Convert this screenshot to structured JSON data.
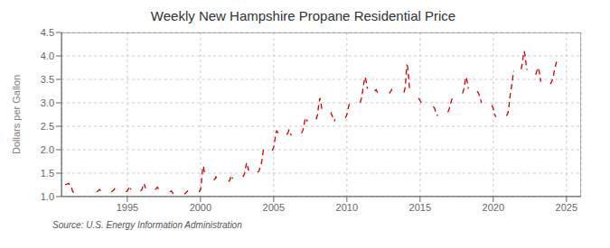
{
  "chart_data": {
    "type": "line",
    "title": "Weekly New Hampshire Propane Residential Price",
    "y_label": "Dollars per Gallon",
    "annotations": [
      "Source: U.S. Energy Information Administration"
    ],
    "color": "#cc0000",
    "line_style": "dashed",
    "grid": true,
    "xlim": [
      1990.5,
      2026.0
    ],
    "xticks": [
      1995,
      2000,
      2005,
      2010,
      2015,
      2020,
      2025
    ],
    "ylim": [
      1.0,
      4.5
    ],
    "yticks": [
      {
        "value": 1.0,
        "label": "1.0"
      },
      1.5,
      {
        "value": 2.0,
        "label": "2.0"
      },
      2.5,
      {
        "value": 3.0,
        "label": "3.0"
      },
      3.5,
      {
        "value": 4.0,
        "label": "4.0"
      },
      4.5
    ],
    "x": [
      1990.75,
      1991.0,
      1991.1,
      1991.2,
      1991.25,
      1991.3,
      1991.35,
      null,
      1992.9,
      1993.0,
      1993.1,
      1993.2,
      1993.25,
      1993.3,
      null,
      1993.9,
      1994.0,
      1994.1,
      1994.15,
      1994.2,
      1994.25,
      1994.3,
      null,
      1994.9,
      1995.0,
      1995.05,
      1995.1,
      1995.15,
      1995.2,
      1995.25,
      null,
      1995.9,
      1996.0,
      1996.05,
      1996.1,
      1996.15,
      1996.2,
      1996.25,
      null,
      1996.9,
      1997.0,
      1997.05,
      1997.1,
      1997.15,
      1997.2,
      null,
      1997.9,
      1998.0,
      1998.05,
      1998.1,
      1998.15,
      1998.2,
      null,
      1998.9,
      1999.0,
      1999.05,
      1999.1,
      1999.15,
      1999.2,
      null,
      1999.9,
      2000.0,
      2000.05,
      2000.1,
      2000.15,
      2000.2,
      2000.25,
      2000.3,
      null,
      2000.9,
      2001.0,
      2001.05,
      2001.1,
      2001.15,
      2001.2,
      null,
      2001.9,
      2002.0,
      2002.05,
      2002.1,
      2002.15,
      2002.2,
      null,
      2002.9,
      2003.0,
      2003.05,
      2003.1,
      2003.15,
      2003.2,
      2003.25,
      2003.3,
      null,
      2003.9,
      2004.0,
      2004.05,
      2004.1,
      2004.15,
      2004.2,
      2004.25,
      2004.3,
      2004.35,
      null,
      2004.9,
      2005.0,
      2005.05,
      2005.1,
      2005.15,
      2005.2,
      2005.25,
      2005.3,
      null,
      2005.9,
      2006.0,
      2006.05,
      2006.1,
      2006.15,
      2006.2,
      null,
      2006.9,
      2007.0,
      2007.05,
      2007.1,
      2007.15,
      2007.2,
      2007.25,
      2007.3,
      null,
      2007.9,
      2008.0,
      2008.05,
      2008.1,
      2008.15,
      2008.2,
      2008.25,
      2008.3,
      null,
      2008.9,
      2009.0,
      2009.05,
      2009.1,
      2009.15,
      2009.2,
      null,
      2009.9,
      2010.0,
      2010.05,
      2010.1,
      2010.15,
      2010.2,
      2010.25,
      null,
      2010.9,
      2011.0,
      2011.05,
      2011.1,
      2011.15,
      2011.2,
      2011.25,
      2011.3,
      2011.35,
      2011.4,
      null,
      2011.9,
      2012.0,
      2012.05,
      2012.1,
      2012.15,
      2012.2,
      null,
      2012.9,
      2013.0,
      2013.05,
      2013.1,
      2013.15,
      2013.2,
      null,
      2013.9,
      2014.0,
      2014.05,
      2014.1,
      2014.15,
      2014.2,
      2014.25,
      2014.3,
      null,
      2014.9,
      2015.0,
      2015.05,
      2015.1,
      2015.15,
      2015.2,
      null,
      2015.9,
      2016.0,
      2016.05,
      2016.1,
      2016.15,
      2016.2,
      null,
      2016.9,
      2017.0,
      2017.05,
      2017.1,
      2017.15,
      2017.2,
      null,
      2017.9,
      2018.0,
      2018.05,
      2018.1,
      2018.15,
      2018.2,
      2018.25,
      2018.3,
      null,
      2018.9,
      2019.0,
      2019.05,
      2019.1,
      2019.15,
      2019.2,
      null,
      2019.9,
      2020.0,
      2020.05,
      2020.1,
      2020.15,
      2020.2,
      null,
      2020.9,
      2021.0,
      2021.05,
      2021.1,
      2021.15,
      2021.2,
      2021.25,
      2021.3,
      2021.35,
      2021.4,
      null,
      2021.9,
      2022.0,
      2022.05,
      2022.1,
      2022.15,
      2022.2,
      2022.25,
      2022.3,
      null,
      2022.9,
      2023.0,
      2023.05,
      2023.1,
      2023.15,
      2023.2,
      2023.25,
      null,
      2023.9,
      2024.0,
      2024.05,
      2024.1,
      2024.15,
      2024.2,
      2024.25,
      2024.3,
      2024.35
    ],
    "values": [
      1.25,
      1.28,
      1.22,
      1.18,
      1.12,
      1.1,
      1.08,
      null,
      1.1,
      1.12,
      1.15,
      1.12,
      1.1,
      1.08,
      null,
      1.1,
      1.12,
      1.15,
      1.18,
      1.2,
      1.18,
      1.15,
      null,
      1.1,
      1.12,
      1.15,
      1.18,
      1.22,
      1.18,
      1.15,
      null,
      1.12,
      1.15,
      1.2,
      1.25,
      1.28,
      1.22,
      1.18,
      null,
      1.15,
      1.18,
      1.2,
      1.18,
      1.15,
      1.12,
      null,
      1.1,
      1.12,
      1.1,
      1.08,
      1.05,
      1.08,
      null,
      1.05,
      1.08,
      1.1,
      1.12,
      1.1,
      1.08,
      null,
      1.1,
      1.15,
      1.25,
      1.45,
      1.6,
      1.65,
      1.55,
      1.45,
      null,
      1.35,
      1.38,
      1.42,
      1.4,
      1.38,
      1.35,
      null,
      1.32,
      1.35,
      1.4,
      1.45,
      1.42,
      1.38,
      null,
      1.42,
      1.48,
      1.55,
      1.65,
      1.72,
      1.68,
      1.6,
      1.55,
      null,
      1.52,
      1.55,
      1.6,
      1.65,
      1.7,
      1.78,
      1.9,
      2.0,
      1.95,
      null,
      1.98,
      2.05,
      2.15,
      2.25,
      2.35,
      2.4,
      2.38,
      2.35,
      null,
      2.32,
      2.38,
      2.42,
      2.4,
      2.35,
      2.3,
      null,
      2.35,
      2.42,
      2.5,
      2.58,
      2.65,
      2.68,
      2.65,
      2.6,
      null,
      2.65,
      2.75,
      2.9,
      3.0,
      3.1,
      3.05,
      2.95,
      2.85,
      null,
      2.8,
      2.72,
      2.68,
      2.65,
      2.62,
      2.65,
      null,
      2.68,
      2.75,
      2.82,
      2.9,
      2.95,
      2.98,
      2.95,
      null,
      3.0,
      3.1,
      3.2,
      3.3,
      3.4,
      3.5,
      3.55,
      3.48,
      3.4,
      3.3,
      null,
      3.25,
      3.28,
      3.25,
      3.22,
      3.2,
      3.18,
      null,
      3.2,
      3.25,
      3.28,
      3.25,
      3.22,
      3.2,
      null,
      3.22,
      3.35,
      3.6,
      3.8,
      3.78,
      3.6,
      3.4,
      3.25,
      null,
      3.1,
      3.05,
      3.02,
      3.0,
      2.98,
      2.95,
      null,
      2.92,
      2.88,
      2.82,
      2.78,
      2.75,
      2.72,
      null,
      2.8,
      2.88,
      2.95,
      3.0,
      3.05,
      3.1,
      null,
      3.2,
      3.3,
      3.4,
      3.5,
      3.55,
      3.48,
      3.4,
      3.3,
      null,
      3.25,
      3.2,
      3.15,
      3.1,
      3.05,
      3.0,
      null,
      2.95,
      2.88,
      2.8,
      2.75,
      2.72,
      2.7,
      null,
      2.72,
      2.78,
      2.88,
      3.0,
      3.15,
      3.25,
      3.35,
      3.45,
      3.58,
      3.68,
      null,
      3.72,
      3.85,
      4.0,
      4.1,
      4.05,
      3.95,
      3.8,
      3.7,
      null,
      3.6,
      3.7,
      3.75,
      3.72,
      3.65,
      3.55,
      3.45,
      null,
      3.4,
      3.45,
      3.5,
      3.55,
      3.65,
      3.72,
      3.78,
      3.85,
      3.9
    ]
  }
}
